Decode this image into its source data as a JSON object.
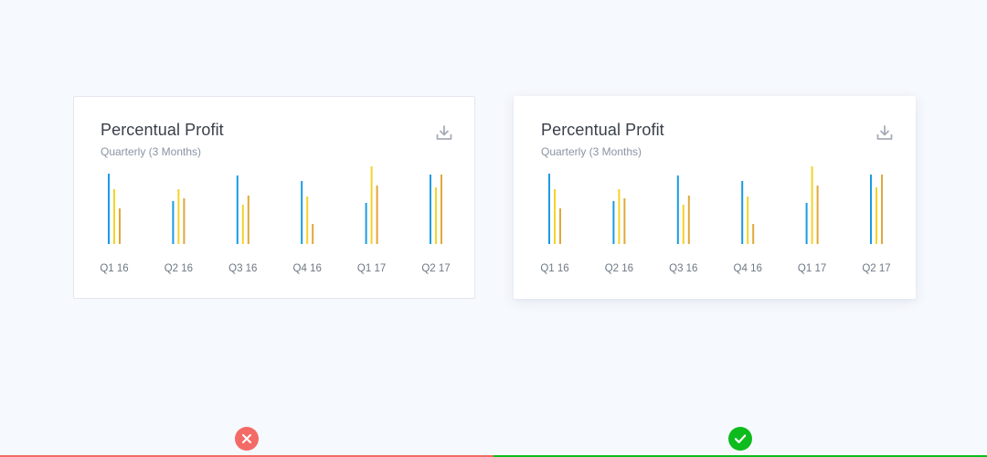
{
  "colors": {
    "background": "#f6f9fd",
    "series_blue": "#1a9be6",
    "series_yellow": "#f5d327",
    "series_orange": "#e0a83a",
    "bad": "#f36b66",
    "good": "#0dbb1d"
  },
  "cards": [
    {
      "variant": "bad",
      "title": "Percentual Profit",
      "subtitle": "Quarterly (3 Months)",
      "download_icon": "download-icon"
    },
    {
      "variant": "good",
      "title": "Percentual Profit",
      "subtitle": "Quarterly (3 Months)",
      "download_icon": "download-icon"
    }
  ],
  "indicators": {
    "bad_icon": "close-icon",
    "good_icon": "check-icon"
  },
  "chart_data": [
    {
      "type": "bar",
      "title": "Percentual Profit",
      "subtitle": "Quarterly (3 Months)",
      "categories": [
        "Q1 16",
        "Q2 16",
        "Q3 16",
        "Q4 16",
        "Q1 17",
        "Q2 17"
      ],
      "series": [
        {
          "color": "#1a9be6",
          "values": [
            77,
            47,
            75,
            69,
            45,
            76
          ]
        },
        {
          "color": "#f5d327",
          "values": [
            60,
            60,
            43,
            52,
            85,
            62
          ]
        },
        {
          "color": "#e0a83a",
          "values": [
            39,
            50,
            53,
            22,
            64,
            76
          ]
        }
      ],
      "ylim": [
        0,
        85
      ],
      "grid": false
    },
    {
      "type": "bar",
      "title": "Percentual Profit",
      "subtitle": "Quarterly (3 Months)",
      "categories": [
        "Q1 16",
        "Q2 16",
        "Q3 16",
        "Q4 16",
        "Q1 17",
        "Q2 17"
      ],
      "series": [
        {
          "color": "#1a9be6",
          "values": [
            77,
            47,
            75,
            69,
            45,
            76
          ]
        },
        {
          "color": "#f5d327",
          "values": [
            60,
            60,
            43,
            52,
            85,
            62
          ]
        },
        {
          "color": "#e0a83a",
          "values": [
            39,
            50,
            53,
            22,
            64,
            76
          ]
        }
      ],
      "ylim": [
        0,
        85
      ],
      "grid": false
    }
  ]
}
